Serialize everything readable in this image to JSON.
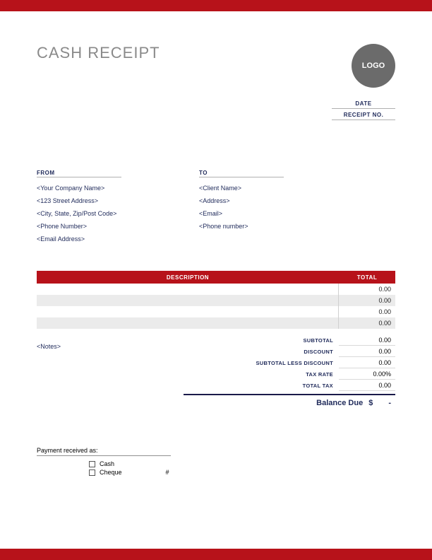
{
  "colors": {
    "accent": "#B7121A",
    "dark_text": "#1f2a5a",
    "title_gray": "#8a8a8a",
    "logo_bg": "#6b6b6b",
    "row_alt": "#ebebeb",
    "border_light": "#d0d0d0"
  },
  "header": {
    "title": "CASH RECEIPT",
    "logo_text": "LOGO"
  },
  "meta": {
    "date_label": "DATE",
    "receipt_label": "RECEIPT NO."
  },
  "from": {
    "heading": "FROM",
    "lines": [
      "<Your Company Name>",
      "<123 Street Address>",
      "<City, State, Zip/Post Code>",
      "<Phone Number>",
      "<Email Address>"
    ]
  },
  "to": {
    "heading": "TO",
    "lines": [
      "<Client Name>",
      "<Address>",
      "<Email>",
      "<Phone number>"
    ]
  },
  "table": {
    "columns": {
      "description": "DESCRIPTION",
      "total": "TOTAL"
    },
    "rows": [
      {
        "desc": "",
        "total": "0.00"
      },
      {
        "desc": "",
        "total": "0.00"
      },
      {
        "desc": "",
        "total": "0.00"
      },
      {
        "desc": "",
        "total": "0.00"
      }
    ]
  },
  "notes": "<Notes>",
  "summary": {
    "subtotal": {
      "label": "SUBTOTAL",
      "value": "0.00"
    },
    "discount": {
      "label": "DISCOUNT",
      "value": "0.00"
    },
    "subtotal_less_discount": {
      "label": "SUBTOTAL LESS DISCOUNT",
      "value": "0.00"
    },
    "tax_rate": {
      "label": "TAX RATE",
      "value": "0.00%"
    },
    "total_tax": {
      "label": "TOTAL TAX",
      "value": "0.00"
    }
  },
  "balance": {
    "label": "Balance Due",
    "currency": "$",
    "value": "-"
  },
  "payment": {
    "heading": "Payment received as:",
    "cash": "Cash",
    "cheque": "Cheque",
    "cheque_hash": "#"
  }
}
